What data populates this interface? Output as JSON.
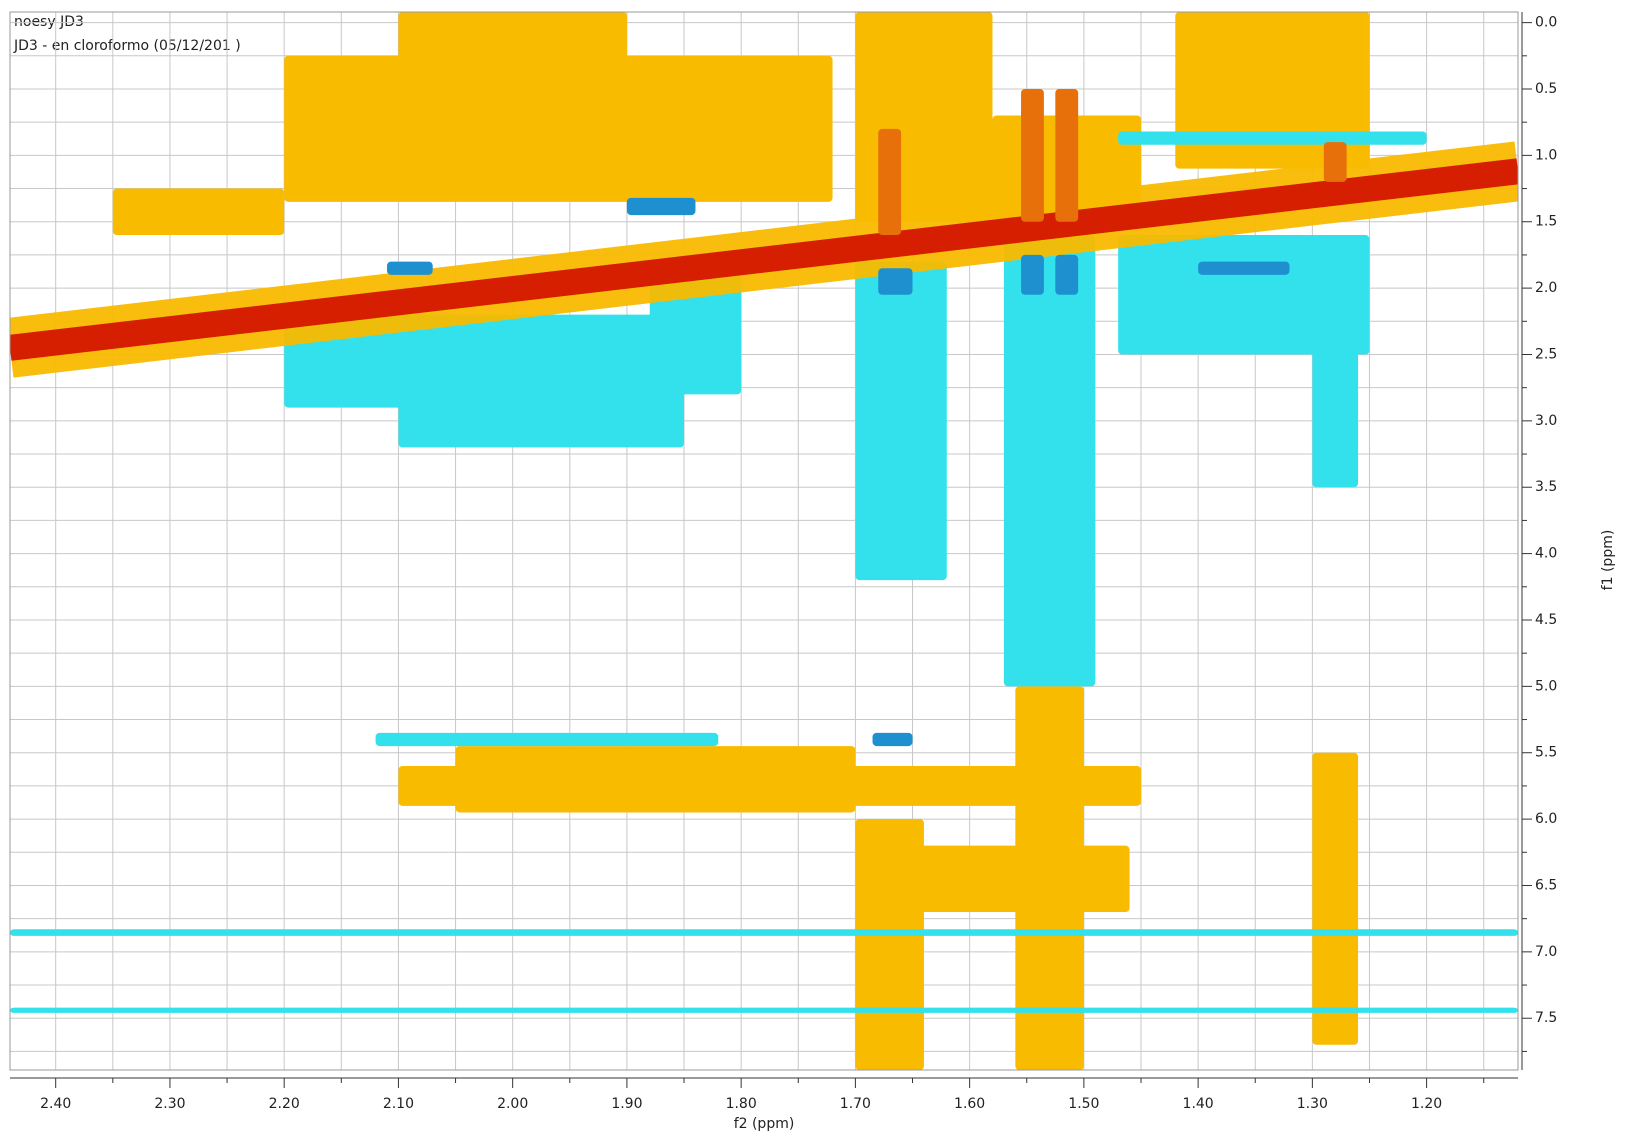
{
  "chart_data": {
    "type": "contour",
    "title": "noesy JD3",
    "subtitle": "JD3 - en cloroformo (05/12/201 )",
    "xlabel": "f2 (ppm)",
    "ylabel": "f1 (ppm)",
    "xlim": [
      1.12,
      2.44
    ],
    "xreverse": true,
    "ylim": [
      -0.08,
      7.89
    ],
    "yreverse": true,
    "xticks": [
      {
        "value": 2.4,
        "label": "2.40"
      },
      {
        "value": 2.3,
        "label": "2.30"
      },
      {
        "value": 2.2,
        "label": "2.20"
      },
      {
        "value": 2.1,
        "label": "2.10"
      },
      {
        "value": 2,
        "label": "2.00"
      },
      {
        "value": 1.9,
        "label": "1.90"
      },
      {
        "value": 1.8,
        "label": "1.80"
      },
      {
        "value": 1.7,
        "label": "1.70"
      },
      {
        "value": 1.6,
        "label": "1.60"
      },
      {
        "value": 1.5,
        "label": "1.50"
      },
      {
        "value": 1.4,
        "label": "1.40"
      },
      {
        "value": 1.3,
        "label": "1.30"
      },
      {
        "value": 1.2,
        "label": "1.20"
      }
    ],
    "xminor": [
      2.35,
      2.25,
      2.15,
      2.05,
      1.95,
      1.85,
      1.75,
      1.65,
      1.55,
      1.45,
      1.35,
      1.25,
      1.15
    ],
    "yticks": [
      {
        "value": 0,
        "label": "0.0"
      },
      0.5,
      {
        "value": 1,
        "label": "1.0"
      },
      1.5,
      {
        "value": 2,
        "label": "2.0"
      },
      2.5,
      {
        "value": 3,
        "label": "3.0"
      },
      3.5,
      {
        "value": 4,
        "label": "4.0"
      },
      4.5,
      {
        "value": 5,
        "label": "5.0"
      },
      5.5,
      {
        "value": 6,
        "label": "6.0"
      },
      6.5,
      {
        "value": 7,
        "label": "7.0"
      },
      7.5
    ],
    "yminor": [
      0.25,
      0.75,
      1.25,
      1.75,
      2.25,
      2.75,
      3.25,
      3.75,
      4.25,
      4.75,
      5.25,
      5.75,
      6.25,
      6.75,
      7.25,
      7.75
    ],
    "grid": true,
    "regions": [
      {
        "color": "#f9bb00",
        "x0": [
          2.2,
          2.1,
          1.7,
          1.58,
          1.42,
          2.35,
          2.05,
          2.1,
          1.7,
          1.56,
          1.3,
          1.66
        ],
        "x1": [
          1.72,
          1.9,
          1.58,
          1.45,
          1.25,
          2.2,
          1.7,
          1.45,
          1.64,
          1.5,
          1.26,
          1.46
        ],
        "y0": [
          0.25,
          -0.08,
          -0.08,
          0.7,
          -0.08,
          1.25,
          5.45,
          5.6,
          6,
          5,
          5.5,
          6.2
        ],
        "y1": [
          1.35,
          0.3,
          1.5,
          1.5,
          1.1,
          1.6,
          5.95,
          5.9,
          7.89,
          7.89,
          7.7,
          6.7
        ]
      },
      {
        "color": "#33e1ec",
        "x0": [
          2.2,
          2.1,
          1.88,
          1.7,
          1.57,
          1.47,
          1.3,
          2.12,
          2.44,
          2.44,
          1.47
        ],
        "x1": [
          2.05,
          1.85,
          1.8,
          1.62,
          1.49,
          1.25,
          1.26,
          1.82,
          1.12,
          1.12,
          1.2
        ],
        "y0": [
          2.2,
          2.2,
          1.9,
          1.8,
          1.6,
          1.6,
          2.3,
          5.35,
          6.83,
          7.42,
          0.82
        ],
        "y1": [
          2.9,
          3.2,
          2.8,
          4.2,
          5,
          2.5,
          3.5,
          5.45,
          6.88,
          7.46,
          0.92
        ]
      },
      {
        "color": "#1e90d0",
        "x0": [
          1.9,
          1.68,
          1.555,
          1.525,
          1.4,
          1.685,
          2.11
        ],
        "x1": [
          1.84,
          1.65,
          1.535,
          1.505,
          1.32,
          1.65,
          2.07
        ],
        "y0": [
          1.32,
          1.85,
          1.75,
          1.75,
          1.8,
          5.35,
          1.8
        ],
        "y1": [
          1.45,
          2.05,
          2.05,
          2.05,
          1.9,
          5.45,
          1.9
        ]
      },
      {
        "color": "#e8700a",
        "x0": [
          1.68,
          1.555,
          1.525,
          1.29
        ],
        "x1": [
          1.66,
          1.535,
          1.505,
          1.27
        ],
        "y0": [
          0.8,
          0.5,
          0.5,
          0.9
        ],
        "y1": [
          1.6,
          1.5,
          1.5,
          1.2
        ]
      }
    ],
    "diagonal": {
      "color": "#d41500",
      "x": [
        2.44,
        1.12
      ],
      "y": [
        2.45,
        1.12
      ]
    }
  }
}
